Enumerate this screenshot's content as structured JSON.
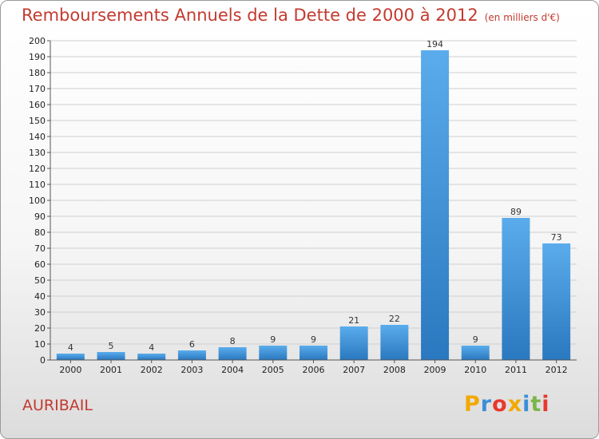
{
  "title": "Remboursements Annuels de la Dette de 2000 à 2012",
  "unit": "(en milliers d'€)",
  "place": "AURIBAIL",
  "logo": {
    "text": "Proxiti",
    "letter_colors": [
      "#f2a900",
      "#3a8fd6",
      "#e8392d",
      "#f2a900",
      "#3a8fd6",
      "#7ab648",
      "#e8392d"
    ]
  },
  "colors": {
    "bar_light": "#5aacec",
    "bar_dark": "#2a78bf",
    "grid": "#cfcfcf",
    "title": "#c33a2f"
  },
  "chart_data": {
    "type": "bar",
    "title": "Remboursements Annuels de la Dette de 2000 à 2012",
    "categories": [
      "2000",
      "2001",
      "2002",
      "2003",
      "2004",
      "2005",
      "2006",
      "2007",
      "2008",
      "2009",
      "2010",
      "2011",
      "2012"
    ],
    "values": [
      4,
      5,
      4,
      6,
      8,
      9,
      9,
      21,
      22,
      194,
      9,
      89,
      73
    ],
    "ylim": [
      0,
      200
    ],
    "ytick_step": 10,
    "grid": true,
    "data_labels": true
  }
}
